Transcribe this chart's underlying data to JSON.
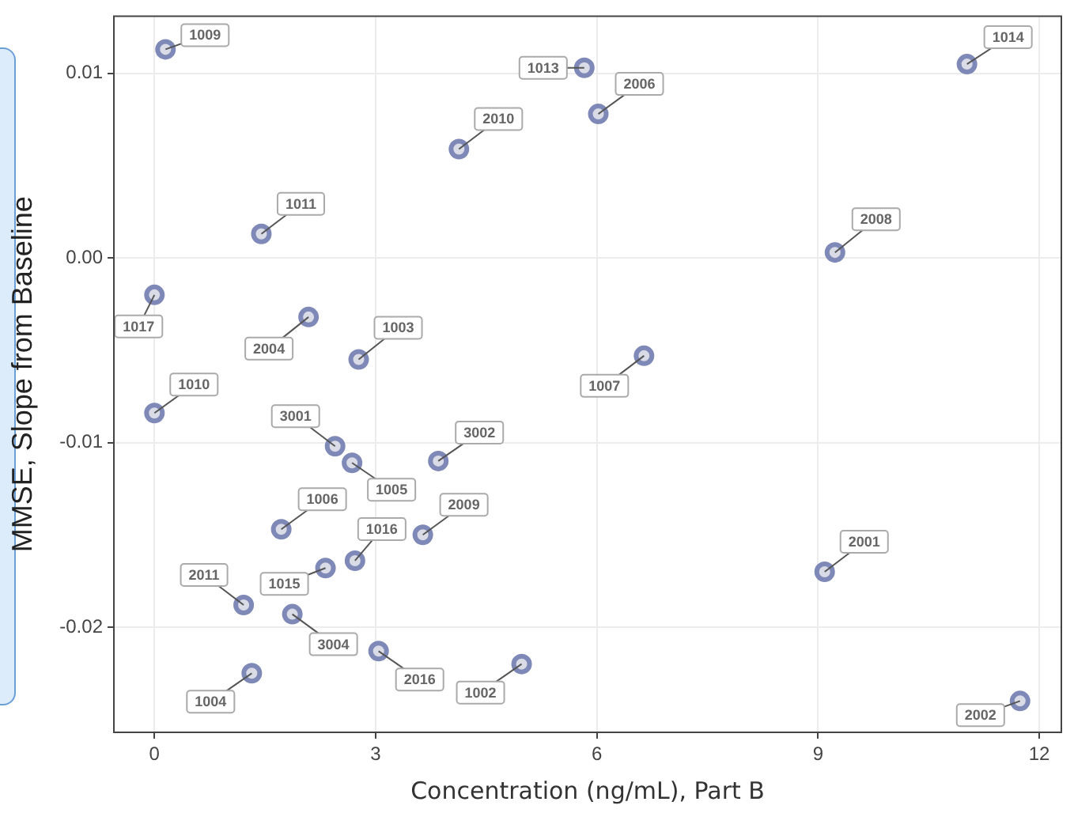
{
  "chart_data": {
    "type": "scatter",
    "xlabel": "Concentration (ng/mL), Part B",
    "ylabel": "MMSE, Slope from Baseline",
    "x": [
      0.15,
      5.83,
      11.02,
      6.02,
      4.13,
      1.45,
      9.23,
      0.0,
      2.09,
      2.77,
      6.64,
      0.0,
      2.45,
      2.68,
      3.85,
      1.72,
      3.64,
      2.72,
      2.32,
      1.21,
      1.87,
      3.04,
      1.32,
      4.98,
      9.09,
      11.74
    ],
    "series": [
      {
        "color": "#7f89b8",
        "values": [
          0.0113,
          0.0103,
          0.0105,
          0.0078,
          0.0059,
          0.0013,
          0.0003,
          -0.002,
          -0.0032,
          -0.0055,
          -0.0053,
          -0.0084,
          -0.0102,
          -0.0111,
          -0.011,
          -0.0147,
          -0.015,
          -0.0164,
          -0.0168,
          -0.0188,
          -0.0193,
          -0.0213,
          -0.0225,
          -0.022,
          -0.017,
          -0.024
        ]
      }
    ],
    "annotations": [
      {
        "text": "1009",
        "x": 0.15,
        "y": 0.0113
      },
      {
        "text": "1013",
        "x": 5.83,
        "y": 0.0103
      },
      {
        "text": "1014",
        "x": 11.02,
        "y": 0.0105
      },
      {
        "text": "2006",
        "x": 6.02,
        "y": 0.0078
      },
      {
        "text": "2010",
        "x": 4.13,
        "y": 0.0059
      },
      {
        "text": "1011",
        "x": 1.45,
        "y": 0.0013
      },
      {
        "text": "2008",
        "x": 9.23,
        "y": 0.0003
      },
      {
        "text": "1017",
        "x": 0.0,
        "y": -0.002
      },
      {
        "text": "2004",
        "x": 2.09,
        "y": -0.0032
      },
      {
        "text": "1003",
        "x": 2.77,
        "y": -0.0055
      },
      {
        "text": "1007",
        "x": 6.64,
        "y": -0.0053
      },
      {
        "text": "1010",
        "x": 0.0,
        "y": -0.0084
      },
      {
        "text": "3001",
        "x": 2.45,
        "y": -0.0102
      },
      {
        "text": "1005",
        "x": 2.68,
        "y": -0.0111
      },
      {
        "text": "3002",
        "x": 3.85,
        "y": -0.011
      },
      {
        "text": "1006",
        "x": 1.72,
        "y": -0.0147
      },
      {
        "text": "2009",
        "x": 3.64,
        "y": -0.015
      },
      {
        "text": "1016",
        "x": 2.72,
        "y": -0.0164
      },
      {
        "text": "1015",
        "x": 2.32,
        "y": -0.0168
      },
      {
        "text": "2011",
        "x": 1.21,
        "y": -0.0188
      },
      {
        "text": "3004",
        "x": 1.87,
        "y": -0.0193
      },
      {
        "text": "2016",
        "x": 3.04,
        "y": -0.0213
      },
      {
        "text": "1004",
        "x": 1.32,
        "y": -0.0225
      },
      {
        "text": "1002",
        "x": 4.98,
        "y": -0.022
      },
      {
        "text": "2001",
        "x": 9.09,
        "y": -0.017
      },
      {
        "text": "2002",
        "x": 11.74,
        "y": -0.024
      }
    ],
    "xlim": [
      -0.55,
      12.3
    ],
    "xticks": [
      0,
      3,
      6,
      9,
      12
    ],
    "ylim": [
      -0.0257,
      0.0131
    ],
    "yticks": [
      {
        "value": -0.02,
        "label": "-0.02"
      },
      {
        "value": -0.01,
        "label": "-0.01"
      },
      {
        "value": 0,
        "label": "0.00"
      },
      {
        "value": 0.01,
        "label": "0.01"
      }
    ],
    "grid": true,
    "marker": "circle"
  }
}
